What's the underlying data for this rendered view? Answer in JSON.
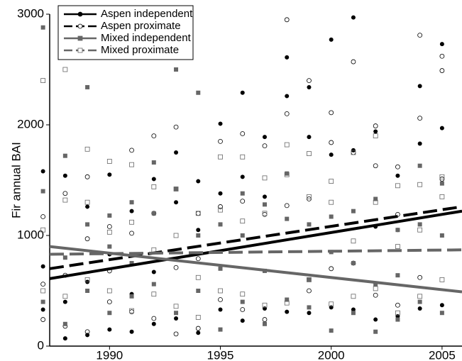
{
  "chart_data": {
    "type": "scatter",
    "y_label": "Fir annual BAI",
    "xlim": [
      1987.3,
      2005.9
    ],
    "xticks": [
      1990,
      1995,
      2000,
      2005
    ],
    "ylim": [
      0,
      3000
    ],
    "yticks": [
      0,
      1000,
      2000,
      3000
    ],
    "grid": false,
    "legend": "upper left",
    "series": [
      {
        "name": "Aspen independent",
        "color": "#000000",
        "marker": "circle",
        "filled": true,
        "line": "solid",
        "x": [
          1987,
          1987,
          1987,
          1988,
          1988,
          1988,
          1989,
          1989,
          1989,
          1990,
          1990,
          1990,
          1991,
          1991,
          1991,
          1992,
          1992,
          1992,
          1993,
          1993,
          1993,
          1994,
          1994,
          1994,
          1995,
          1995,
          1995,
          1996,
          1996,
          1996,
          1997,
          1997,
          1997,
          1998,
          1998,
          1998,
          1999,
          1999,
          1999,
          2000,
          2000,
          2000,
          2001,
          2001,
          2001,
          2002,
          2002,
          2002,
          2003,
          2003,
          2003,
          2004,
          2004,
          2004,
          2005,
          2005,
          2005
        ],
        "values": [
          1580,
          720,
          330,
          1540,
          400,
          70,
          1260,
          580,
          100,
          1550,
          830,
          150,
          1220,
          470,
          130,
          1510,
          670,
          200,
          1750,
          1300,
          250,
          1490,
          1050,
          120,
          2010,
          1380,
          330,
          2290,
          1530,
          230,
          1890,
          1350,
          340,
          2610,
          2260,
          310,
          2340,
          1890,
          300,
          2770,
          1730,
          350,
          2970,
          1770,
          330,
          1940,
          1080,
          240,
          1540,
          1050,
          270,
          2350,
          1830,
          340,
          2730,
          1970,
          370
        ],
        "trend": {
          "x": [
            1987.3,
            2005.9
          ],
          "values": [
            610,
            1220
          ]
        }
      },
      {
        "name": "Aspen proximate",
        "color": "#000000",
        "marker": "circle",
        "filled": false,
        "line": "dashed",
        "x": [
          1987,
          1987,
          1987,
          1988,
          1988,
          1988,
          1989,
          1989,
          1989,
          1990,
          1990,
          1990,
          1991,
          1991,
          1991,
          1992,
          1992,
          1992,
          1993,
          1993,
          1993,
          1994,
          1994,
          1994,
          1995,
          1995,
          1995,
          1996,
          1996,
          1996,
          1997,
          1997,
          1997,
          1998,
          1998,
          1998,
          1999,
          1999,
          1999,
          2000,
          2000,
          2000,
          2001,
          2001,
          2001,
          2002,
          2002,
          2002,
          2003,
          2003,
          2003,
          2004,
          2004,
          2004,
          2005,
          2005,
          2005
        ],
        "values": [
          1170,
          560,
          240,
          1380,
          640,
          180,
          1530,
          970,
          130,
          1080,
          680,
          400,
          1770,
          1020,
          310,
          1900,
          1200,
          250,
          1980,
          710,
          110,
          1200,
          790,
          160,
          1850,
          1260,
          420,
          1920,
          1310,
          330,
          1810,
          1190,
          240,
          2950,
          2100,
          1270,
          2400,
          1330,
          500,
          2110,
          1840,
          700,
          2570,
          1750,
          750,
          1990,
          1630,
          460,
          1620,
          1190,
          370,
          2810,
          2060,
          620,
          2620,
          2490,
          1510
        ],
        "trend": {
          "x": [
            1987.3,
            2005.9
          ],
          "values": [
            700,
            1260
          ]
        }
      },
      {
        "name": "Mixed independent",
        "color": "#666666",
        "marker": "square",
        "filled": true,
        "line": "solid",
        "x": [
          1987,
          1987,
          1987,
          1988,
          1988,
          1988,
          1989,
          1989,
          1989,
          1990,
          1990,
          1990,
          1991,
          1991,
          1991,
          1992,
          1992,
          1992,
          1993,
          1993,
          1993,
          1994,
          1994,
          1994,
          1995,
          1995,
          1995,
          1996,
          1996,
          1996,
          1997,
          1997,
          1997,
          1998,
          1998,
          1998,
          1999,
          1999,
          1999,
          2000,
          2000,
          2000,
          2001,
          2001,
          2001,
          2002,
          2002,
          2002,
          2003,
          2003,
          2003,
          2004,
          2004,
          2004,
          2005,
          2005,
          2005
        ],
        "values": [
          2880,
          1400,
          400,
          1720,
          800,
          200,
          2340,
          1100,
          500,
          1180,
          900,
          300,
          1300,
          750,
          450,
          1660,
          1200,
          560,
          2500,
          1420,
          300,
          2290,
          1000,
          500,
          1100,
          700,
          150,
          1380,
          1000,
          400,
          1280,
          680,
          200,
          1560,
          1150,
          420,
          1100,
          600,
          350,
          1170,
          850,
          140,
          1220,
          750,
          300,
          1330,
          560,
          130,
          1050,
          640,
          240,
          1630,
          1100,
          400,
          1470,
          1000,
          300
        ],
        "trend": {
          "x": [
            1987.3,
            2005.9
          ],
          "values": [
            900,
            490
          ]
        }
      },
      {
        "name": "Mixed proximate",
        "color": "#666666",
        "marker": "square",
        "filled": false,
        "line": "dashed",
        "x": [
          1987,
          1987,
          1987,
          1988,
          1988,
          1988,
          1989,
          1989,
          1989,
          1990,
          1990,
          1990,
          1991,
          1991,
          1991,
          1992,
          1992,
          1992,
          1993,
          1993,
          1993,
          1994,
          1994,
          1994,
          1995,
          1995,
          1995,
          1996,
          1996,
          1996,
          1997,
          1997,
          1997,
          1998,
          1998,
          1998,
          1999,
          1999,
          1999,
          2000,
          2000,
          2000,
          2001,
          2001,
          2001,
          2002,
          2002,
          2002,
          2003,
          2003,
          2003,
          2004,
          2004,
          2004,
          2005,
          2005,
          2005
        ],
        "values": [
          2400,
          1050,
          500,
          2500,
          1320,
          450,
          1780,
          1300,
          600,
          1670,
          1030,
          500,
          1640,
          1120,
          320,
          1440,
          870,
          470,
          1420,
          1000,
          360,
          1200,
          620,
          260,
          1710,
          1230,
          500,
          1710,
          1130,
          470,
          1520,
          1200,
          370,
          1820,
          1550,
          390,
          1740,
          1350,
          600,
          1490,
          1300,
          380,
          1750,
          950,
          450,
          1900,
          1300,
          520,
          1450,
          900,
          300,
          1460,
          1050,
          450,
          1530,
          1350,
          600
        ],
        "trend": {
          "x": [
            1987.3,
            2005.9
          ],
          "values": [
            830,
            870
          ]
        }
      }
    ]
  }
}
